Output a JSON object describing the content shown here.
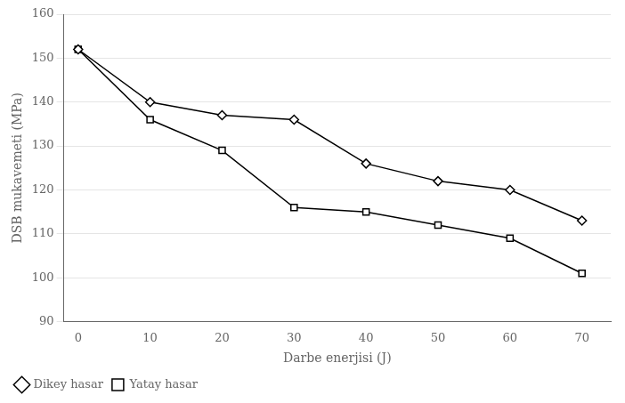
{
  "chart_data": {
    "type": "line",
    "x": [
      0,
      10,
      20,
      30,
      40,
      50,
      60,
      70
    ],
    "series": [
      {
        "name": "Dikey hasar",
        "color": "#000000",
        "marker": "diamond",
        "values": [
          152,
          140,
          137,
          136,
          126,
          122,
          120,
          113
        ]
      },
      {
        "name": "Yatay hasar",
        "color": "#000000",
        "marker": "square",
        "values": [
          152,
          136,
          129,
          116,
          115,
          112,
          109,
          101
        ]
      }
    ],
    "xlabel": "Darbe enerjisi (J)",
    "ylabel": "DSB mukavemeti (MPa)",
    "xlim": [
      -2,
      74
    ],
    "xticks": [
      0,
      10,
      20,
      30,
      40,
      50,
      60,
      70
    ],
    "ylim": [
      90,
      160
    ],
    "yticks": [
      90,
      100,
      110,
      120,
      130,
      140,
      150,
      160
    ],
    "grid": "y",
    "legend": "lower left"
  }
}
